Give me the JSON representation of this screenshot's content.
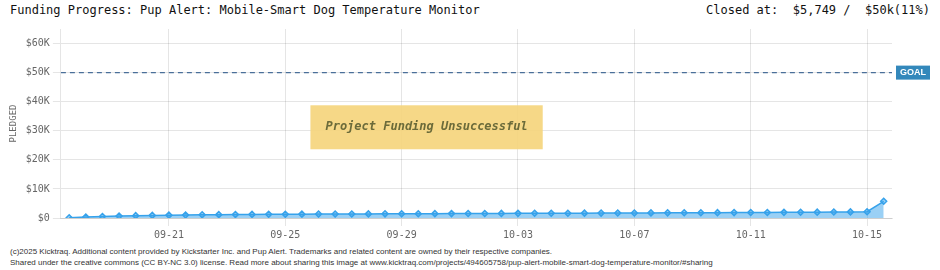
{
  "chart_data": {
    "type": "area",
    "title": "Funding Progress: Pup Alert: Mobile-Smart Dog Temperature Monitor",
    "subtitle": "Closed at:  $5,749 /  $50k(11%)",
    "ylabel": "PLEDGED",
    "categories": [
      null,
      null,
      null,
      null,
      null,
      null,
      "09-21",
      null,
      null,
      null,
      null,
      null,
      null,
      "09-25",
      null,
      null,
      null,
      null,
      null,
      null,
      "09-29",
      null,
      null,
      null,
      null,
      null,
      null,
      "10-03",
      null,
      null,
      null,
      null,
      null,
      null,
      "10-07",
      null,
      null,
      null,
      null,
      null,
      null,
      "10-11",
      null,
      null,
      null,
      null,
      null,
      null,
      "10-15",
      null
    ],
    "values": [
      100,
      350,
      520,
      680,
      800,
      900,
      980,
      1050,
      1110,
      1160,
      1200,
      1240,
      1275,
      1305,
      1330,
      1355,
      1375,
      1395,
      1415,
      1435,
      1455,
      1475,
      1495,
      1515,
      1535,
      1555,
      1575,
      1595,
      1615,
      1635,
      1655,
      1675,
      1695,
      1715,
      1735,
      1755,
      1775,
      1795,
      1815,
      1835,
      1860,
      1885,
      1910,
      1940,
      1970,
      2005,
      2050,
      2100,
      2160,
      5749
    ],
    "marker": "diamond",
    "ylim": [
      0,
      65000
    ],
    "yticks": [
      {
        "value": 0,
        "label": "$0"
      },
      {
        "value": 10000,
        "label": "$10K"
      },
      {
        "value": 20000,
        "label": "$20K"
      },
      {
        "value": 30000,
        "label": "$30K"
      },
      {
        "value": 40000,
        "label": "$40K"
      },
      {
        "value": 50000,
        "label": "$50K"
      },
      {
        "value": 60000,
        "label": "$60K"
      }
    ],
    "grid": true,
    "annotations": [
      {
        "type": "hline",
        "value": 50000,
        "label": "GOAL"
      },
      {
        "type": "text",
        "text": "Project Funding Unsuccessful"
      }
    ],
    "footer": [
      "(c)2025 Kicktraq. Additional content provided by Kickstarter Inc. and Pup Alert. Trademarks and related content are owned by their respective companies.",
      "Shared under the creative commons (CC BY-NC 3.0) license. Read more about sharing this image at www.kicktraq.com/projects/494605758/pup-alert-mobile-smart-dog-temperature-monitor/#sharing"
    ]
  }
}
